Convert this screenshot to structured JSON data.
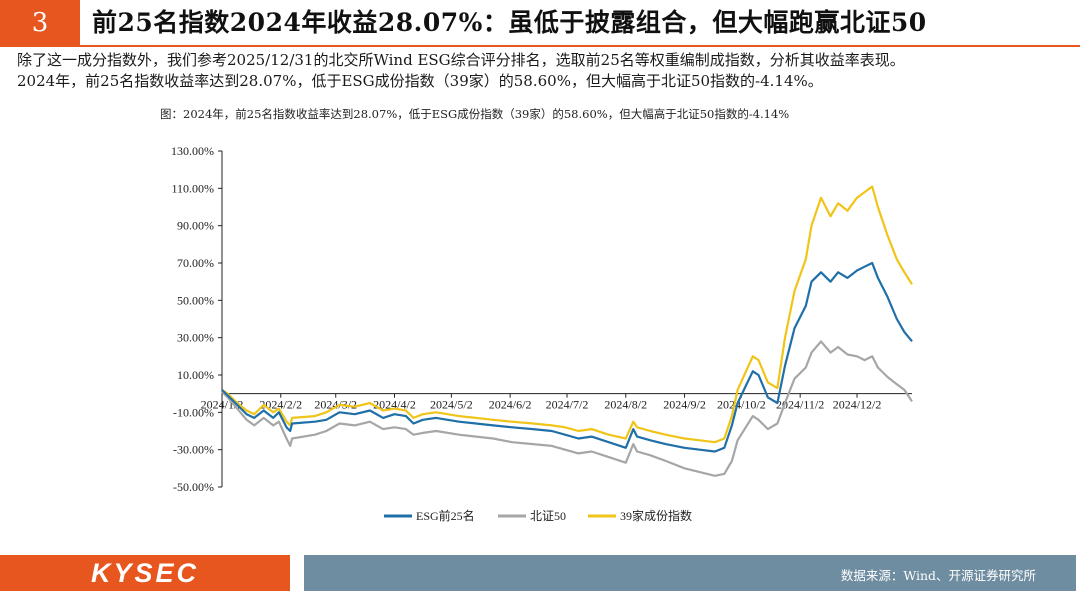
{
  "header": {
    "number": "3",
    "title": "前25名指数2024年收益28.07%：虽低于披露组合，但大幅跑赢北证50"
  },
  "intro": {
    "line1": "除了这一成分指数外，我们参考2025/12/31的北交所Wind ESG综合评分排名，选取前25名等权重编制成指数，分析其收益率表现。",
    "line2": "2024年，前25名指数收益率达到28.07%，低于ESG成份指数（39家）的58.60%，但大幅高于北证50指数的-4.14%。"
  },
  "chart_caption": "图：2024年，前25名指数收益率达到28.07%，低于ESG成份指数（39家）的58.60%，但大幅高于北证50指数的-4.14%",
  "footer": {
    "logo": "KYSEC",
    "source": "数据来源：Wind、开源证券研究所"
  },
  "colors": {
    "accent": "#e8561f",
    "footer_bar": "#6f8da0",
    "esg25": "#1f6fa8",
    "bz50": "#a6a6a6",
    "esg39": "#f0c419"
  },
  "chart_data": {
    "type": "line",
    "title": "",
    "xlabel": "",
    "ylabel": "",
    "ylim": [
      -0.5,
      1.3
    ],
    "yticks": [
      -0.5,
      -0.3,
      -0.1,
      0.1,
      0.3,
      0.5,
      0.7,
      0.9,
      1.1,
      1.3
    ],
    "ytick_labels": [
      "-50.00%",
      "-30.00%",
      "-10.00%",
      "10.00%",
      "30.00%",
      "50.00%",
      "70.00%",
      "90.00%",
      "110.00%",
      "130.00%"
    ],
    "xticks": [
      "2024-01-02",
      "2024-02-02",
      "2024-03-02",
      "2024-04-02",
      "2024-05-02",
      "2024-06-02",
      "2024-07-02",
      "2024-08-02",
      "2024-09-02",
      "2024-10-02",
      "2024-11-02",
      "2024-12-02"
    ],
    "xtick_labels": [
      "2024/1/2",
      "2024/2/2",
      "2024/3/2",
      "2024/4/2",
      "2024/5/2",
      "2024/6/2",
      "2024/7/2",
      "2024/8/2",
      "2024/9/2",
      "2024/10/2",
      "2024/11/2",
      "2024/12/2"
    ],
    "xlim": [
      "2024-01-02",
      "2024-12-31"
    ],
    "legend_position": "bottom",
    "series": [
      {
        "name": "ESG前25名",
        "color": "#1f6fa8",
        "points": [
          [
            "2024-01-02",
            0.02
          ],
          [
            "2024-01-05",
            -0.01
          ],
          [
            "2024-01-10",
            -0.06
          ],
          [
            "2024-01-15",
            -0.11
          ],
          [
            "2024-01-19",
            -0.13
          ],
          [
            "2024-01-24",
            -0.09
          ],
          [
            "2024-01-29",
            -0.13
          ],
          [
            "2024-02-01",
            -0.1
          ],
          [
            "2024-02-05",
            -0.18
          ],
          [
            "2024-02-07",
            -0.2
          ],
          [
            "2024-02-08",
            -0.16
          ],
          [
            "2024-02-20",
            -0.15
          ],
          [
            "2024-02-26",
            -0.14
          ],
          [
            "2024-03-04",
            -0.1
          ],
          [
            "2024-03-12",
            -0.11
          ],
          [
            "2024-03-20",
            -0.09
          ],
          [
            "2024-03-27",
            -0.13
          ],
          [
            "2024-04-02",
            -0.11
          ],
          [
            "2024-04-08",
            -0.12
          ],
          [
            "2024-04-12",
            -0.16
          ],
          [
            "2024-04-17",
            -0.14
          ],
          [
            "2024-04-24",
            -0.13
          ],
          [
            "2024-05-06",
            -0.15
          ],
          [
            "2024-05-15",
            -0.16
          ],
          [
            "2024-05-24",
            -0.17
          ],
          [
            "2024-06-03",
            -0.18
          ],
          [
            "2024-06-14",
            -0.19
          ],
          [
            "2024-06-24",
            -0.2
          ],
          [
            "2024-07-01",
            -0.22
          ],
          [
            "2024-07-08",
            -0.24
          ],
          [
            "2024-07-15",
            -0.23
          ],
          [
            "2024-07-24",
            -0.26
          ],
          [
            "2024-08-02",
            -0.29
          ],
          [
            "2024-08-06",
            -0.19
          ],
          [
            "2024-08-08",
            -0.23
          ],
          [
            "2024-08-15",
            -0.25
          ],
          [
            "2024-08-23",
            -0.27
          ],
          [
            "2024-09-02",
            -0.29
          ],
          [
            "2024-09-10",
            -0.3
          ],
          [
            "2024-09-18",
            -0.31
          ],
          [
            "2024-09-23",
            -0.29
          ],
          [
            "2024-09-27",
            -0.17
          ],
          [
            "2024-09-30",
            -0.05
          ],
          [
            "2024-10-08",
            0.12
          ],
          [
            "2024-10-11",
            0.1
          ],
          [
            "2024-10-16",
            -0.02
          ],
          [
            "2024-10-21",
            -0.05
          ],
          [
            "2024-10-25",
            0.15
          ],
          [
            "2024-10-30",
            0.35
          ],
          [
            "2024-11-05",
            0.47
          ],
          [
            "2024-11-08",
            0.6
          ],
          [
            "2024-11-13",
            0.65
          ],
          [
            "2024-11-18",
            0.6
          ],
          [
            "2024-11-22",
            0.65
          ],
          [
            "2024-11-27",
            0.62
          ],
          [
            "2024-12-02",
            0.66
          ],
          [
            "2024-12-06",
            0.68
          ],
          [
            "2024-12-10",
            0.7
          ],
          [
            "2024-12-13",
            0.62
          ],
          [
            "2024-12-18",
            0.52
          ],
          [
            "2024-12-23",
            0.4
          ],
          [
            "2024-12-27",
            0.33
          ],
          [
            "2024-12-31",
            0.2807
          ]
        ]
      },
      {
        "name": "北证50",
        "color": "#a6a6a6",
        "points": [
          [
            "2024-01-02",
            0.01
          ],
          [
            "2024-01-05",
            -0.02
          ],
          [
            "2024-01-10",
            -0.08
          ],
          [
            "2024-01-15",
            -0.14
          ],
          [
            "2024-01-19",
            -0.17
          ],
          [
            "2024-01-24",
            -0.13
          ],
          [
            "2024-01-29",
            -0.17
          ],
          [
            "2024-02-01",
            -0.15
          ],
          [
            "2024-02-05",
            -0.24
          ],
          [
            "2024-02-07",
            -0.28
          ],
          [
            "2024-02-08",
            -0.24
          ],
          [
            "2024-02-20",
            -0.22
          ],
          [
            "2024-02-26",
            -0.2
          ],
          [
            "2024-03-04",
            -0.16
          ],
          [
            "2024-03-12",
            -0.17
          ],
          [
            "2024-03-20",
            -0.15
          ],
          [
            "2024-03-27",
            -0.19
          ],
          [
            "2024-04-02",
            -0.18
          ],
          [
            "2024-04-08",
            -0.19
          ],
          [
            "2024-04-12",
            -0.22
          ],
          [
            "2024-04-17",
            -0.21
          ],
          [
            "2024-04-24",
            -0.2
          ],
          [
            "2024-05-06",
            -0.22
          ],
          [
            "2024-05-15",
            -0.23
          ],
          [
            "2024-05-24",
            -0.24
          ],
          [
            "2024-06-03",
            -0.26
          ],
          [
            "2024-06-14",
            -0.27
          ],
          [
            "2024-06-24",
            -0.28
          ],
          [
            "2024-07-01",
            -0.3
          ],
          [
            "2024-07-08",
            -0.32
          ],
          [
            "2024-07-15",
            -0.31
          ],
          [
            "2024-07-24",
            -0.34
          ],
          [
            "2024-08-02",
            -0.37
          ],
          [
            "2024-08-06",
            -0.27
          ],
          [
            "2024-08-08",
            -0.31
          ],
          [
            "2024-08-15",
            -0.33
          ],
          [
            "2024-08-23",
            -0.36
          ],
          [
            "2024-09-02",
            -0.4
          ],
          [
            "2024-09-10",
            -0.42
          ],
          [
            "2024-09-18",
            -0.44
          ],
          [
            "2024-09-23",
            -0.43
          ],
          [
            "2024-09-27",
            -0.36
          ],
          [
            "2024-09-30",
            -0.25
          ],
          [
            "2024-10-08",
            -0.12
          ],
          [
            "2024-10-11",
            -0.14
          ],
          [
            "2024-10-16",
            -0.19
          ],
          [
            "2024-10-21",
            -0.16
          ],
          [
            "2024-10-25",
            -0.05
          ],
          [
            "2024-10-30",
            0.08
          ],
          [
            "2024-11-05",
            0.14
          ],
          [
            "2024-11-08",
            0.22
          ],
          [
            "2024-11-13",
            0.28
          ],
          [
            "2024-11-18",
            0.22
          ],
          [
            "2024-11-22",
            0.25
          ],
          [
            "2024-11-27",
            0.21
          ],
          [
            "2024-12-02",
            0.2
          ],
          [
            "2024-12-06",
            0.18
          ],
          [
            "2024-12-10",
            0.2
          ],
          [
            "2024-12-13",
            0.14
          ],
          [
            "2024-12-18",
            0.09
          ],
          [
            "2024-12-23",
            0.05
          ],
          [
            "2024-12-27",
            0.02
          ],
          [
            "2024-12-31",
            -0.0414
          ]
        ]
      },
      {
        "name": "39家成份指数",
        "color": "#f0c419",
        "points": [
          [
            "2024-01-02",
            0.02
          ],
          [
            "2024-01-05",
            0.0
          ],
          [
            "2024-01-10",
            -0.05
          ],
          [
            "2024-01-15",
            -0.09
          ],
          [
            "2024-01-19",
            -0.11
          ],
          [
            "2024-01-24",
            -0.06
          ],
          [
            "2024-01-29",
            -0.1
          ],
          [
            "2024-02-01",
            -0.08
          ],
          [
            "2024-02-05",
            -0.15
          ],
          [
            "2024-02-07",
            -0.17
          ],
          [
            "2024-02-08",
            -0.13
          ],
          [
            "2024-02-20",
            -0.12
          ],
          [
            "2024-02-26",
            -0.1
          ],
          [
            "2024-03-04",
            -0.06
          ],
          [
            "2024-03-12",
            -0.07
          ],
          [
            "2024-03-20",
            -0.05
          ],
          [
            "2024-03-27",
            -0.09
          ],
          [
            "2024-04-02",
            -0.08
          ],
          [
            "2024-04-08",
            -0.09
          ],
          [
            "2024-04-12",
            -0.13
          ],
          [
            "2024-04-17",
            -0.11
          ],
          [
            "2024-04-24",
            -0.1
          ],
          [
            "2024-05-06",
            -0.12
          ],
          [
            "2024-05-15",
            -0.13
          ],
          [
            "2024-05-24",
            -0.14
          ],
          [
            "2024-06-03",
            -0.15
          ],
          [
            "2024-06-14",
            -0.16
          ],
          [
            "2024-06-24",
            -0.17
          ],
          [
            "2024-07-01",
            -0.18
          ],
          [
            "2024-07-08",
            -0.2
          ],
          [
            "2024-07-15",
            -0.19
          ],
          [
            "2024-07-24",
            -0.22
          ],
          [
            "2024-08-02",
            -0.24
          ],
          [
            "2024-08-06",
            -0.15
          ],
          [
            "2024-08-08",
            -0.18
          ],
          [
            "2024-08-15",
            -0.2
          ],
          [
            "2024-08-23",
            -0.22
          ],
          [
            "2024-09-02",
            -0.24
          ],
          [
            "2024-09-10",
            -0.25
          ],
          [
            "2024-09-18",
            -0.26
          ],
          [
            "2024-09-23",
            -0.24
          ],
          [
            "2024-09-27",
            -0.12
          ],
          [
            "2024-09-30",
            0.02
          ],
          [
            "2024-10-08",
            0.2
          ],
          [
            "2024-10-11",
            0.18
          ],
          [
            "2024-10-16",
            0.06
          ],
          [
            "2024-10-21",
            0.03
          ],
          [
            "2024-10-25",
            0.3
          ],
          [
            "2024-10-30",
            0.55
          ],
          [
            "2024-11-05",
            0.72
          ],
          [
            "2024-11-08",
            0.9
          ],
          [
            "2024-11-13",
            1.05
          ],
          [
            "2024-11-18",
            0.95
          ],
          [
            "2024-11-22",
            1.02
          ],
          [
            "2024-11-27",
            0.98
          ],
          [
            "2024-12-02",
            1.05
          ],
          [
            "2024-12-06",
            1.08
          ],
          [
            "2024-12-10",
            1.11
          ],
          [
            "2024-12-13",
            1.0
          ],
          [
            "2024-12-18",
            0.85
          ],
          [
            "2024-12-23",
            0.72
          ],
          [
            "2024-12-27",
            0.65
          ],
          [
            "2024-12-31",
            0.586
          ]
        ]
      }
    ]
  }
}
